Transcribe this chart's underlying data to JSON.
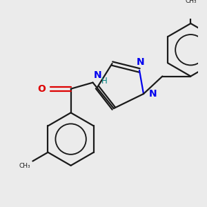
{
  "bg_color": "#ebebeb",
  "bond_color": "#1a1a1a",
  "nitrogen_color": "#0000ee",
  "oxygen_color": "#dd0000",
  "nh_color": "#008080",
  "line_width": 1.6,
  "figsize": [
    3.0,
    3.0
  ],
  "dpi": 100,
  "xlim": [
    0,
    300
  ],
  "ylim": [
    0,
    300
  ]
}
